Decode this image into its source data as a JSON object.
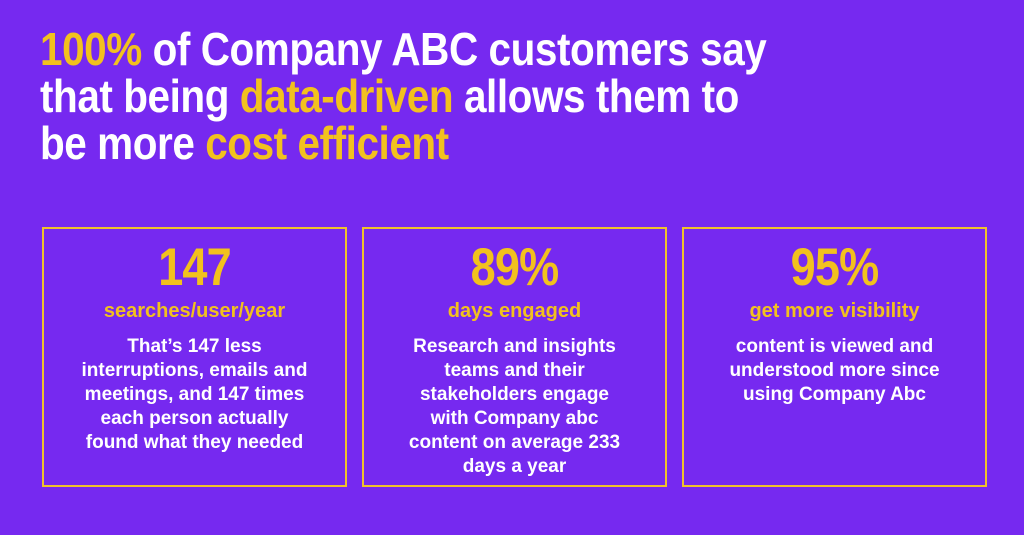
{
  "colors": {
    "background": "#7629F0",
    "accent_yellow": "#F2C11E",
    "card_border": "#F0C12B",
    "text_white": "#FFFFFF"
  },
  "headline": {
    "line1": {
      "highlight": "100%",
      "rest": " of Company ABC customers say"
    },
    "line2": {
      "pre": "that being ",
      "highlight": "data-driven",
      "post": " allows them to"
    },
    "line3": {
      "pre": "be more ",
      "highlight": "cost efficient"
    }
  },
  "cards": [
    {
      "stat": "147",
      "label": "searches/user/year",
      "description": "That’s 147 less\ninterruptions, emails and\nmeetings, and 147 times\neach person actually\nfound what they needed"
    },
    {
      "stat": "89%",
      "label": "days engaged",
      "description": "Research and insights\nteams and their\nstakeholders engage\nwith Company abc\ncontent on average 233\ndays a year"
    },
    {
      "stat": "95%",
      "label": "get more visibility",
      "description": "content is viewed and\nunderstood more since\nusing Company Abc"
    }
  ]
}
